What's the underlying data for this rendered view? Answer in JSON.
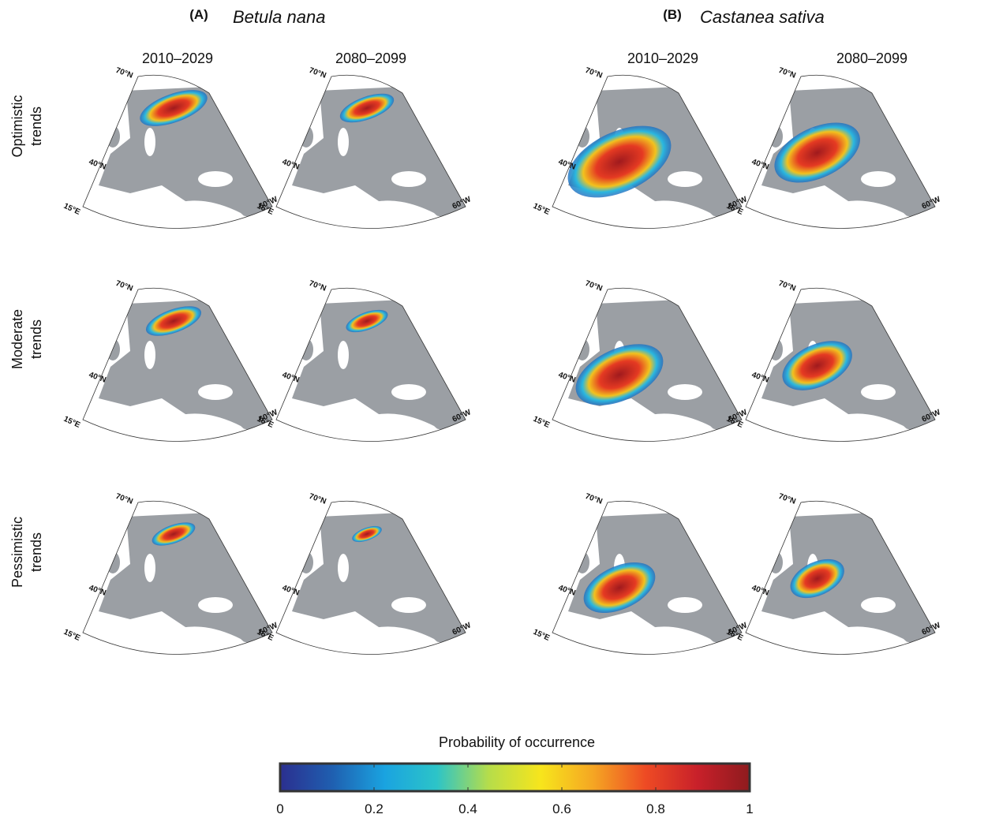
{
  "panels": [
    {
      "letter": "(A)",
      "species": "Betula nana",
      "periods": [
        "2010–2029",
        "2080–2099"
      ]
    },
    {
      "letter": "(B)",
      "species": "Castanea sativa",
      "periods": [
        "2010–2029",
        "2080–2099"
      ]
    }
  ],
  "rows": [
    [
      "Optimistic",
      "trends"
    ],
    [
      "Moderate",
      "trends"
    ],
    [
      "Pessimistic",
      "trends"
    ]
  ],
  "map_labels": {
    "lat_top": "70°N",
    "lat_mid": "40°N",
    "lon_left": "15°E",
    "lon_right": "60°W"
  },
  "colorbar": {
    "title": "Probability of occurrence",
    "lim": [
      0,
      1
    ],
    "ticks": [
      0,
      0.2,
      0.4,
      0.6,
      0.8,
      1
    ],
    "colormap": [
      "#2b2f8f",
      "#1f5fb0",
      "#1aa3e0",
      "#2cc4c8",
      "#b6dd4a",
      "#f7e51c",
      "#f5a623",
      "#ee4b24",
      "#c8202a",
      "#8e1b1e"
    ]
  }
}
